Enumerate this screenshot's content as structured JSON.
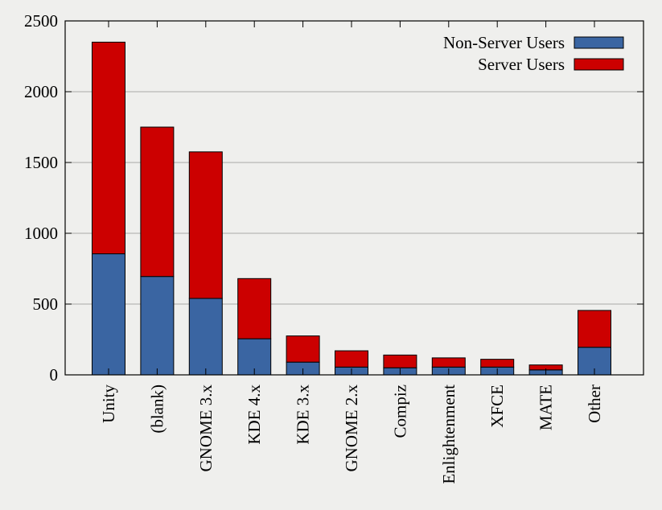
{
  "chart_data": {
    "type": "bar",
    "stacked": true,
    "categories": [
      "Unity",
      "(blank)",
      "GNOME 3.x",
      "KDE 4.x",
      "KDE 3.x",
      "GNOME 2.x",
      "Compiz",
      "Enlightenment",
      "XFCE",
      "MATE",
      "Other"
    ],
    "series": [
      {
        "name": "Non-Server Users",
        "color": "#3a65a2",
        "values": [
          855,
          695,
          540,
          255,
          90,
          55,
          50,
          55,
          55,
          35,
          195
        ]
      },
      {
        "name": "Server Users",
        "color": "#cc0000",
        "values": [
          1495,
          1055,
          1035,
          425,
          185,
          115,
          90,
          65,
          55,
          35,
          260
        ]
      }
    ],
    "ylim": [
      0,
      2500
    ],
    "yticks": [
      0,
      500,
      1000,
      1500,
      2000,
      2500
    ],
    "grid": true,
    "legend_position": "top-right",
    "title": "",
    "xlabel": "",
    "ylabel": ""
  }
}
